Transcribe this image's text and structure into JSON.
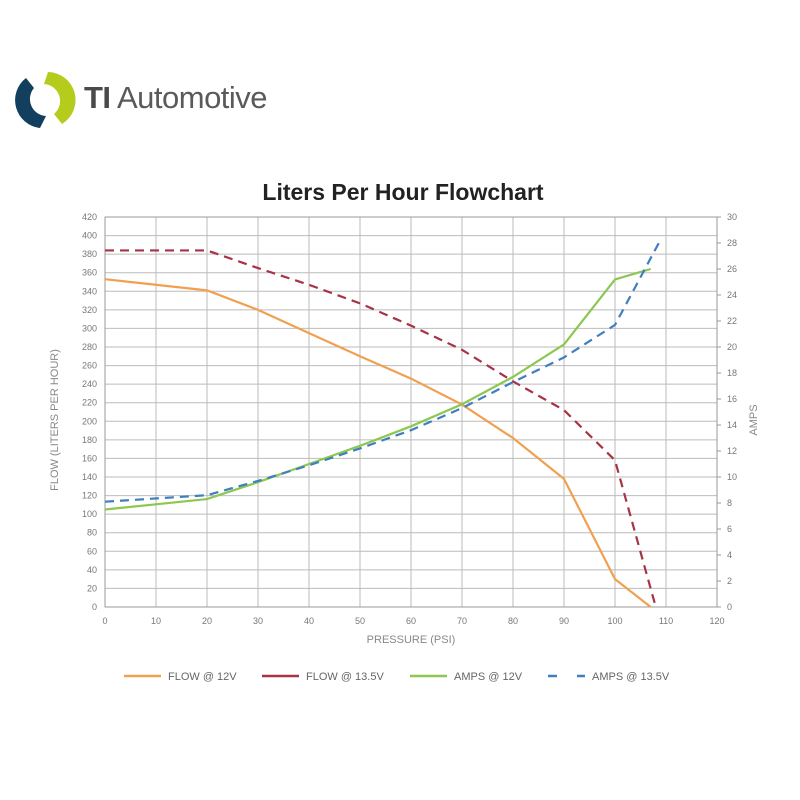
{
  "brand": {
    "name_bold": "TI",
    "name_rest": "Automotive"
  },
  "chart_data": {
    "type": "line",
    "title": "Liters Per Hour Flowchart",
    "xlabel": "PRESSURE (PSI)",
    "ylabel": "FLOW (LITERS PER HOUR)",
    "y2label": "AMPS",
    "xlim": [
      0,
      120
    ],
    "ylim": [
      0,
      420
    ],
    "y2lim": [
      0,
      30
    ],
    "xticks": [
      0,
      10,
      20,
      30,
      40,
      50,
      60,
      70,
      80,
      90,
      100,
      110,
      120
    ],
    "yticks": [
      0,
      20,
      40,
      60,
      80,
      100,
      120,
      140,
      160,
      180,
      200,
      220,
      240,
      260,
      280,
      300,
      320,
      340,
      360,
      380,
      400,
      420
    ],
    "y2ticks": [
      0,
      2,
      4,
      6,
      8,
      10,
      12,
      14,
      16,
      18,
      20,
      22,
      24,
      26,
      28,
      30
    ],
    "grid": true,
    "legend_position": "bottom",
    "series": [
      {
        "name": "FLOW @ 12V",
        "axis": "left",
        "color": "#f0a050",
        "dashed": false,
        "x": [
          0,
          20,
          30,
          40,
          50,
          60,
          70,
          80,
          90,
          100,
          107
        ],
        "y": [
          353,
          341,
          320,
          295,
          270,
          246,
          218,
          182,
          138,
          30,
          0
        ]
      },
      {
        "name": "FLOW @ 13.5V",
        "axis": "left",
        "color": "#a83246",
        "dashed": true,
        "x": [
          0,
          20,
          30,
          40,
          50,
          60,
          70,
          80,
          90,
          100,
          108
        ],
        "y": [
          384,
          384,
          365,
          347,
          327,
          303,
          277,
          243,
          212,
          158,
          0
        ]
      },
      {
        "name": "AMPS @ 12V",
        "axis": "right",
        "color": "#8cc850",
        "dashed": false,
        "x": [
          0,
          10,
          20,
          30,
          40,
          50,
          60,
          70,
          80,
          90,
          100,
          107
        ],
        "y": [
          7.5,
          7.9,
          8.3,
          9.6,
          11,
          12.4,
          13.9,
          15.6,
          17.7,
          20.2,
          25.2,
          26
        ]
      },
      {
        "name": "AMPS @ 13.5V",
        "axis": "right",
        "color": "#3f7fc0",
        "dashed": true,
        "x": [
          0,
          20,
          30,
          40,
          50,
          60,
          70,
          80,
          90,
          100,
          109
        ],
        "y": [
          8.1,
          8.6,
          9.7,
          10.9,
          12.2,
          13.6,
          15.3,
          17.3,
          19.2,
          21.7,
          28.3
        ]
      }
    ]
  }
}
